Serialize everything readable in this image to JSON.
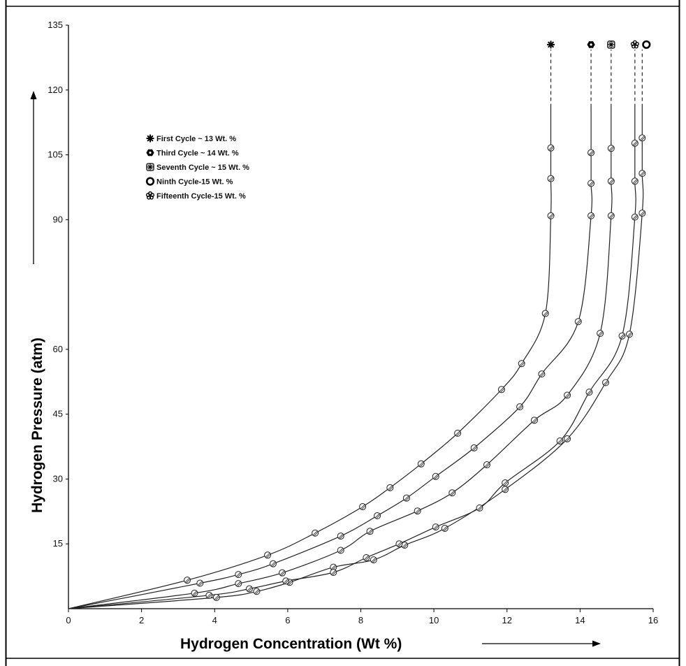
{
  "chart_data": {
    "type": "line",
    "xlabel": "Hydrogen Concentration (Wt %)",
    "ylabel": "Hydrogen Pressure (atm)",
    "xlim": [
      0,
      16
    ],
    "ylim": [
      0,
      135
    ],
    "x_ticks": [
      "0",
      "2",
      "4",
      "6",
      "8",
      "10",
      "12",
      "14",
      "16"
    ],
    "y_ticks": [
      "15",
      "30",
      "45",
      "60",
      "90",
      "105",
      "120",
      "135"
    ],
    "y_tick_values": [
      15,
      30,
      45,
      60,
      90,
      105,
      120,
      135
    ],
    "grid": false,
    "legend_position": "top-left",
    "series": [
      {
        "name": "First Cycle ~ 13 Wt. %",
        "marker": "asterisk",
        "points": [
          [
            3.25,
            6.6
          ],
          [
            5.45,
            12.4
          ],
          [
            6.75,
            17.5
          ],
          [
            8.05,
            23.6
          ],
          [
            8.8,
            28
          ],
          [
            9.65,
            33.5
          ],
          [
            10.65,
            40.6
          ],
          [
            11.85,
            50.7
          ],
          [
            12.4,
            56.7
          ],
          [
            13.05,
            68.3
          ],
          [
            13.2,
            90.9
          ],
          [
            13.2,
            99.5
          ],
          [
            13.2,
            106.6
          ]
        ],
        "top_x": 13.2
      },
      {
        "name": "Third Cycle ~ 14 Wt. %",
        "marker": "flower",
        "points": [
          [
            3.6,
            5.9
          ],
          [
            4.65,
            7.9
          ],
          [
            5.6,
            10.4
          ],
          [
            7.45,
            16.8
          ],
          [
            8.45,
            21.5
          ],
          [
            9.25,
            25.6
          ],
          [
            10.05,
            30.6
          ],
          [
            11.1,
            37.2
          ],
          [
            12.35,
            46.7
          ],
          [
            12.95,
            54.3
          ],
          [
            13.95,
            66.4
          ],
          [
            14.3,
            90.9
          ],
          [
            14.3,
            98.4
          ],
          [
            14.3,
            105.5
          ]
        ],
        "top_x": 14.3
      },
      {
        "name": "Seventh Cycle ~ 15 Wt. %",
        "marker": "snowflake",
        "points": [
          [
            3.45,
            3.6
          ],
          [
            4.65,
            5.8
          ],
          [
            5.85,
            8.3
          ],
          [
            7.45,
            13.5
          ],
          [
            8.25,
            17.9
          ],
          [
            9.55,
            22.6
          ],
          [
            10.5,
            26.8
          ],
          [
            11.45,
            33.3
          ],
          [
            12.75,
            43.6
          ],
          [
            13.65,
            49.4
          ],
          [
            14.55,
            63.7
          ],
          [
            14.85,
            90.9
          ],
          [
            14.85,
            98.9
          ],
          [
            14.85,
            106.5
          ]
        ],
        "top_x": 14.85
      },
      {
        "name": "Ninth Cycle-15 Wt. %",
        "marker": "ring",
        "points": [
          [
            4.05,
            2.6
          ],
          [
            5.15,
            4.0
          ],
          [
            6.05,
            6.1
          ],
          [
            7.25,
            9.6
          ],
          [
            8.35,
            11.3
          ],
          [
            9.2,
            14.7
          ],
          [
            10.3,
            18.6
          ],
          [
            11.95,
            27.6
          ],
          [
            13.65,
            39.3
          ],
          [
            14.7,
            52.3
          ],
          [
            15.35,
            63.5
          ],
          [
            15.7,
            91.5
          ],
          [
            15.7,
            100.7
          ],
          [
            15.7,
            108.9
          ]
        ],
        "top_x": 15.7
      },
      {
        "name": "Fifteenth Cycle-15  Wt. %",
        "marker": "flower-outline",
        "points": [
          [
            3.85,
            3.1
          ],
          [
            4.95,
            4.6
          ],
          [
            5.95,
            6.4
          ],
          [
            7.25,
            8.4
          ],
          [
            8.15,
            11.8
          ],
          [
            9.05,
            15
          ],
          [
            10.05,
            18.9
          ],
          [
            11.25,
            23.3
          ],
          [
            11.95,
            29.1
          ],
          [
            13.45,
            38.8
          ],
          [
            14.25,
            50.1
          ],
          [
            15.15,
            63.1
          ],
          [
            15.5,
            90.6
          ],
          [
            15.5,
            98.9
          ],
          [
            15.5,
            107.7
          ]
        ],
        "top_x": 15.5
      }
    ]
  }
}
